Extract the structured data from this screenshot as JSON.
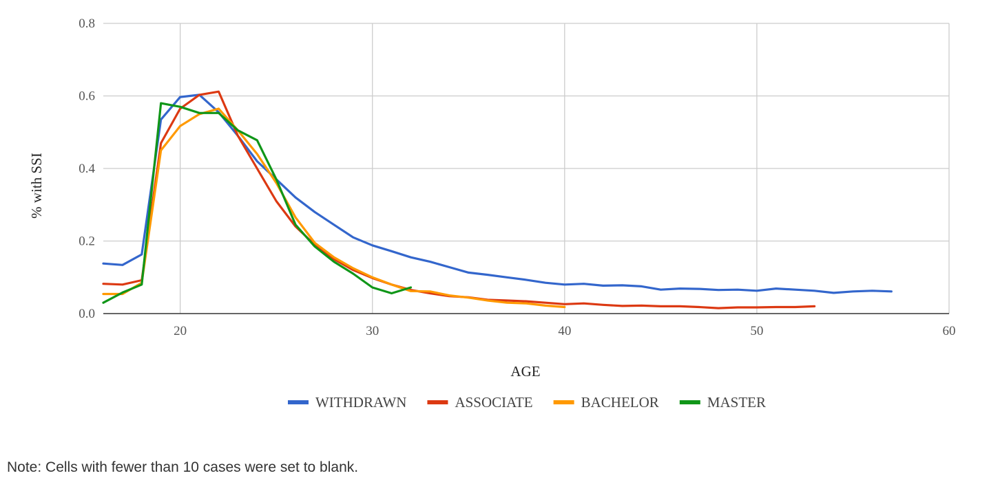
{
  "note": "Note: Cells with fewer than 10 cases were set to blank.",
  "chart_data": {
    "type": "line",
    "title": "",
    "xlabel": "AGE",
    "ylabel": "% with SSI",
    "xlim": [
      16,
      60
    ],
    "ylim": [
      0,
      0.8
    ],
    "x_ticks": [
      20,
      30,
      40,
      50,
      60
    ],
    "y_ticks": [
      "0.0",
      "0.2",
      "0.4",
      "0.6",
      "0.8"
    ],
    "grid": true,
    "legend_position": "bottom",
    "series": [
      {
        "name": "WITHDRAWN",
        "color": "#3366cc",
        "x": [
          16,
          17,
          18,
          19,
          20,
          21,
          22,
          23,
          24,
          25,
          26,
          27,
          28,
          29,
          30,
          31,
          32,
          33,
          34,
          35,
          36,
          37,
          38,
          39,
          40,
          41,
          42,
          43,
          44,
          45,
          46,
          47,
          48,
          49,
          50,
          51,
          52,
          53,
          54,
          55,
          56,
          57
        ],
        "y": [
          0.138,
          0.134,
          0.163,
          0.535,
          0.597,
          0.603,
          0.555,
          0.49,
          0.42,
          0.37,
          0.32,
          0.28,
          0.245,
          0.21,
          0.188,
          0.172,
          0.155,
          0.143,
          0.128,
          0.113,
          0.107,
          0.1,
          0.093,
          0.085,
          0.08,
          0.082,
          0.077,
          0.078,
          0.075,
          0.066,
          0.069,
          0.068,
          0.065,
          0.066,
          0.063,
          0.069,
          0.066,
          0.063,
          0.057,
          0.061,
          0.063,
          0.061
        ]
      },
      {
        "name": "ASSOCIATE",
        "color": "#dc3912",
        "x": [
          16,
          17,
          18,
          19,
          20,
          21,
          22,
          23,
          24,
          25,
          26,
          27,
          28,
          29,
          30,
          31,
          32,
          33,
          34,
          35,
          36,
          37,
          38,
          39,
          40,
          41,
          42,
          43,
          44,
          45,
          46,
          47,
          48,
          49,
          50,
          51,
          52,
          53
        ],
        "y": [
          0.082,
          0.08,
          0.092,
          0.47,
          0.565,
          0.603,
          0.612,
          0.49,
          0.4,
          0.31,
          0.24,
          0.19,
          0.15,
          0.12,
          0.098,
          0.08,
          0.065,
          0.056,
          0.048,
          0.045,
          0.038,
          0.036,
          0.034,
          0.03,
          0.026,
          0.028,
          0.024,
          0.021,
          0.022,
          0.02,
          0.02,
          0.018,
          0.015,
          0.017,
          0.017,
          0.018,
          0.018,
          0.02
        ]
      },
      {
        "name": "BACHELOR",
        "color": "#ff9900",
        "x": [
          16,
          17,
          18,
          19,
          20,
          21,
          22,
          23,
          24,
          25,
          26,
          27,
          28,
          29,
          30,
          31,
          32,
          33,
          34,
          35,
          36,
          37,
          38,
          39,
          40
        ],
        "y": [
          0.054,
          0.054,
          0.085,
          0.45,
          0.517,
          0.55,
          0.565,
          0.505,
          0.44,
          0.36,
          0.265,
          0.195,
          0.155,
          0.125,
          0.1,
          0.08,
          0.062,
          0.061,
          0.05,
          0.044,
          0.036,
          0.03,
          0.028,
          0.022,
          0.018
        ]
      },
      {
        "name": "MASTER",
        "color": "#109618",
        "x": [
          16,
          17,
          18,
          19,
          20,
          21,
          22,
          23,
          24,
          25,
          26,
          27,
          28,
          29,
          30,
          31,
          32
        ],
        "y": [
          0.03,
          0.058,
          0.08,
          0.58,
          0.57,
          0.553,
          0.553,
          0.505,
          0.478,
          0.37,
          0.245,
          0.185,
          0.143,
          0.11,
          0.072,
          0.056,
          0.072
        ]
      }
    ]
  }
}
